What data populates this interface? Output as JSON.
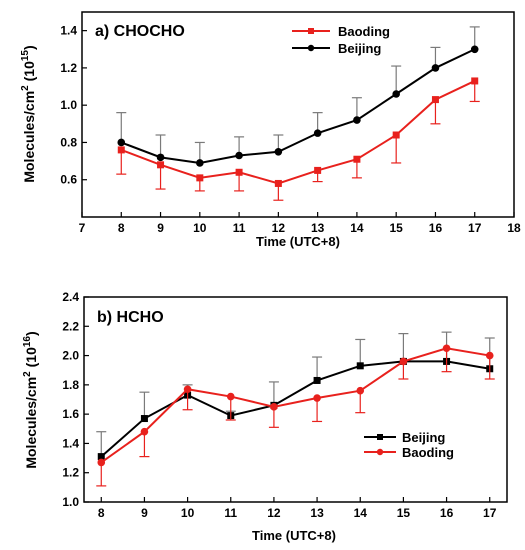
{
  "chart_data": [
    {
      "type": "line",
      "title": "a) CHOCHO",
      "xlabel": "Time (UTC+8)",
      "ylabel": "Molecules/cm",
      "ylabel_sup": "2",
      "ylabel_unit": " (10",
      "ylabel_unit_sup": "15",
      "ylabel_close": ")",
      "xlim": [
        7,
        18
      ],
      "ylim": [
        0.4,
        1.5
      ],
      "xticks": [
        7,
        8,
        9,
        10,
        11,
        12,
        13,
        14,
        15,
        16,
        17,
        18
      ],
      "yticks": [
        0.6,
        0.8,
        1.0,
        1.2,
        1.4
      ],
      "yticks_labels": [
        "0.6",
        "0.8",
        "1.0",
        "1.2",
        "1.4"
      ],
      "legend_placement": "top-right",
      "x": [
        8,
        9,
        10,
        11,
        12,
        13,
        14,
        15,
        16,
        17
      ],
      "series": [
        {
          "name": "Baoding",
          "color": "#e8211d",
          "marker": "square",
          "values": [
            0.76,
            0.68,
            0.61,
            0.64,
            0.58,
            0.65,
            0.71,
            0.84,
            1.03,
            1.13
          ],
          "errors": [
            0.13,
            0.13,
            0.07,
            0.1,
            0.09,
            0.06,
            0.1,
            0.15,
            0.13,
            0.11
          ]
        },
        {
          "name": "Beijing",
          "color": "#000000",
          "marker": "circle",
          "values": [
            0.8,
            0.72,
            0.69,
            0.73,
            0.75,
            0.85,
            0.92,
            1.06,
            1.2,
            1.3
          ],
          "errors": [
            0.16,
            0.12,
            0.11,
            0.1,
            0.09,
            0.11,
            0.12,
            0.15,
            0.11,
            0.12
          ]
        }
      ]
    },
    {
      "type": "line",
      "title": "b) HCHO",
      "xlabel": "Time (UTC+8)",
      "ylabel": "Molecules/cm",
      "ylabel_sup": "2",
      "ylabel_unit": " (10",
      "ylabel_unit_sup": "16",
      "ylabel_close": ")",
      "xlim": [
        7.6,
        17.4
      ],
      "ylim": [
        1.0,
        2.4
      ],
      "xticks": [
        8,
        9,
        10,
        11,
        12,
        13,
        14,
        15,
        16,
        17
      ],
      "yticks": [
        1.0,
        1.2,
        1.4,
        1.6,
        1.8,
        2.0,
        2.2,
        2.4
      ],
      "yticks_labels": [
        "1.0",
        "1.2",
        "1.4",
        "1.6",
        "1.8",
        "2.0",
        "2.2",
        "2.4"
      ],
      "legend_placement": "bottom-right",
      "x": [
        8,
        9,
        10,
        11,
        12,
        13,
        14,
        15,
        16,
        17
      ],
      "series": [
        {
          "name": "Beijing",
          "color": "#000000",
          "marker": "square",
          "values": [
            1.31,
            1.57,
            1.73,
            1.59,
            1.66,
            1.83,
            1.93,
            1.96,
            1.96,
            1.91
          ],
          "errors": [
            0.17,
            0.18,
            0.07,
            0.03,
            0.16,
            0.16,
            0.18,
            0.19,
            0.2,
            0.21
          ]
        },
        {
          "name": "Baoding",
          "color": "#e8211d",
          "marker": "circle",
          "values": [
            1.27,
            1.48,
            1.77,
            1.72,
            1.65,
            1.71,
            1.76,
            1.96,
            2.05,
            2.0
          ],
          "errors": [
            0.16,
            0.17,
            0.14,
            0.16,
            0.14,
            0.16,
            0.15,
            0.12,
            0.16,
            0.16
          ]
        }
      ]
    }
  ]
}
